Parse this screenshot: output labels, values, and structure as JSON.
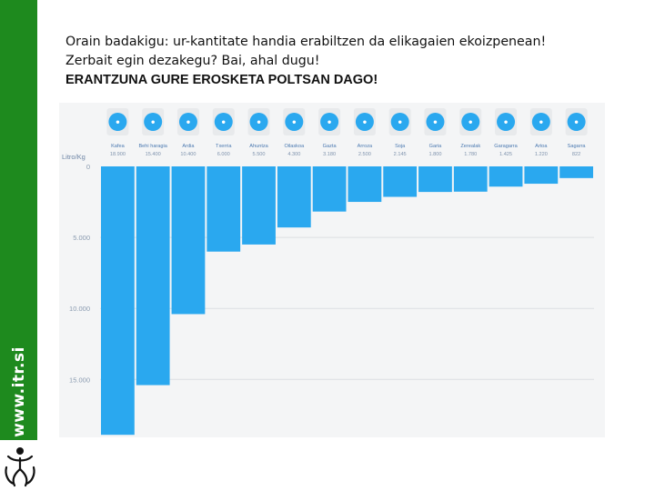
{
  "slide": {
    "line1": "Orain badakigu: ur-kantitate handia erabiltzen da elikagaien ekoizpenean!",
    "line2": "Zerbait egin dezakegu? Bai, ahal dugu!",
    "line3": "ERANTZUNA GURE EROSKETA POLTSAN DAGO!"
  },
  "sidebar": {
    "url": "www.itr.si"
  },
  "colors": {
    "bar": "#2aa8ef",
    "icon_bg": "#2aa8ef",
    "sidebar": "#1e8a1e",
    "panel": "#f4f5f6"
  },
  "chart_data": {
    "type": "bar",
    "orientation": "downward",
    "ylabel": "Litro/Kg",
    "ylim": [
      0,
      18000
    ],
    "yticks": [
      {
        "value": 0,
        "label": "0"
      },
      {
        "value": 5000,
        "label": "5.000"
      },
      {
        "value": 10000,
        "label": "10.000"
      },
      {
        "value": 15000,
        "label": "15.000"
      }
    ],
    "grid": true,
    "categories": [
      "Kafea",
      "Behi haragia",
      "Ardia",
      "Txerria",
      "Ahuntza",
      "Oilaskoa",
      "Gazta",
      "Arroza",
      "Soja",
      "Garia",
      "Zerealak",
      "Garagarra",
      "Artoa",
      "Sagarra"
    ],
    "value_labels": [
      "18.900",
      "15.400",
      "10.400",
      "6.000",
      "5.500",
      "4.300",
      "3.180",
      "2.500",
      "2.145",
      "1.800",
      "1.780",
      "1.425",
      "1.220",
      "822"
    ],
    "values": [
      18900,
      15400,
      10400,
      6000,
      5500,
      4300,
      3180,
      2500,
      2145,
      1800,
      1780,
      1425,
      1220,
      822
    ],
    "icons": [
      "coffee-icon",
      "cow-icon",
      "sheep-icon",
      "pig-icon",
      "goat-icon",
      "chicken-icon",
      "cheese-icon",
      "rice-icon",
      "soy-icon",
      "wheat-icon",
      "cereal-icon",
      "barley-icon",
      "corn-icon",
      "apple-icon"
    ]
  }
}
